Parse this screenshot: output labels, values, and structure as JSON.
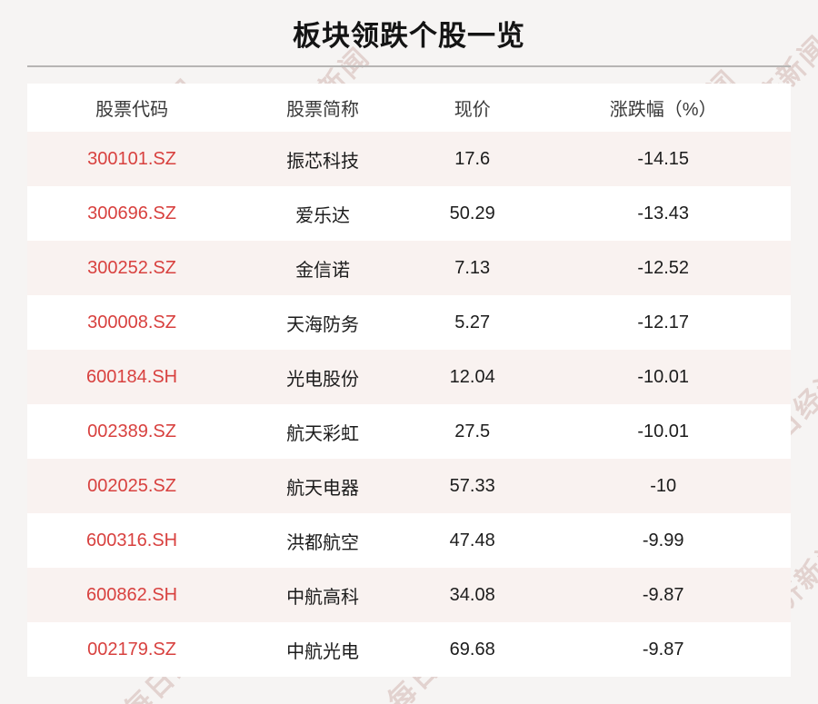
{
  "page": {
    "title": "板块领跌个股一览",
    "watermark_text": "每日经济新闻"
  },
  "table": {
    "columns": [
      "股票代码",
      "股票简称",
      "现价",
      "涨跌幅（%）"
    ],
    "rows": [
      {
        "code": "300101.SZ",
        "name": "振芯科技",
        "price": "17.6",
        "change": "-14.15"
      },
      {
        "code": "300696.SZ",
        "name": "爱乐达",
        "price": "50.29",
        "change": "-13.43"
      },
      {
        "code": "300252.SZ",
        "name": "金信诺",
        "price": "7.13",
        "change": "-12.52"
      },
      {
        "code": "300008.SZ",
        "name": "天海防务",
        "price": "5.27",
        "change": "-12.17"
      },
      {
        "code": "600184.SH",
        "name": "光电股份",
        "price": "12.04",
        "change": "-10.01"
      },
      {
        "code": "002389.SZ",
        "name": "航天彩虹",
        "price": "27.5",
        "change": "-10.01"
      },
      {
        "code": "002025.SZ",
        "name": "航天电器",
        "price": "57.33",
        "change": "-10"
      },
      {
        "code": "600316.SH",
        "name": "洪都航空",
        "price": "47.48",
        "change": "-9.99"
      },
      {
        "code": "600862.SH",
        "name": "中航高科",
        "price": "34.08",
        "change": "-9.87"
      },
      {
        "code": "002179.SZ",
        "name": "中航光电",
        "price": "69.68",
        "change": "-9.87"
      }
    ]
  },
  "colors": {
    "page_background": "#f6f4f3",
    "row_pink": "#f9f2f0",
    "row_white": "#ffffff",
    "stock_code_red": "#d8413f",
    "text_dark": "#1c1c1c",
    "header_text": "#383838",
    "divider_gray": "#b7b5b4",
    "watermark_pink": "#e9dcd8"
  }
}
